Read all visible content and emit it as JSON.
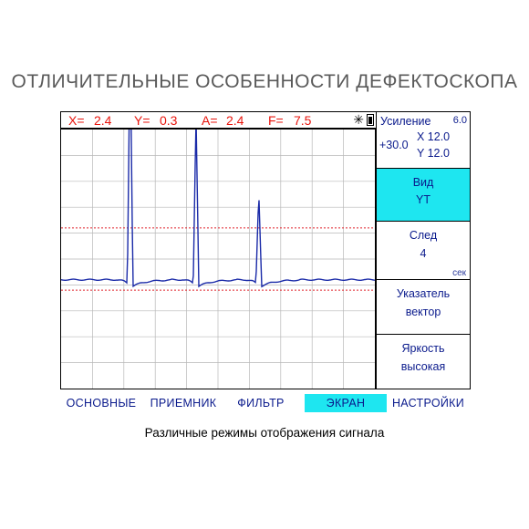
{
  "page_title": "ОТЛИЧИТЕЛЬНЫЕ ОСОБЕННОСТИ ДЕФЕКТОСКОПА",
  "caption": "Различные режимы отображения сигнала",
  "status": {
    "x_label": "X=",
    "x_value": "2.4",
    "y_label": "Y=",
    "y_value": "0.3",
    "a_label": "A=",
    "a_value": "2.4",
    "f_label": "F=",
    "f_value": "7.5",
    "brightness_icon": "sun-icon",
    "battery_icon": "battery-icon"
  },
  "side_panel": {
    "gain": {
      "label": "Усиление",
      "value": "6.0",
      "offset": "+30.0",
      "x": "X 12.0",
      "y": "Y 12.0"
    },
    "view": {
      "label": "Вид",
      "value": "YT"
    },
    "trace": {
      "label": "След",
      "value": "4",
      "unit": "сек"
    },
    "pointer": {
      "label": "Указатель",
      "value": "вектор"
    },
    "brightness": {
      "label": "Яркость",
      "value": "высокая"
    }
  },
  "menu": {
    "items": [
      "ОСНОВНЫЕ",
      "ПРИЕМНИК",
      "ФИЛЬТР",
      "ЭКРАН",
      "НАСТРОЙКИ"
    ],
    "active_index": 3
  },
  "colors": {
    "accent_cyan": "#1ee6f0",
    "label_blue": "#0a1a8c",
    "status_red": "#e8140c",
    "signal_blue": "#1a2aa8",
    "threshold_red": "#e0242c",
    "grid": "#b8b8b8"
  },
  "signal": {
    "baseline_fraction": 0.58,
    "upper_threshold_fraction": 0.38,
    "lower_threshold_fraction": 0.62,
    "peaks": [
      {
        "position": 0.22,
        "height": 0.95
      },
      {
        "position": 0.43,
        "height": 0.64
      },
      {
        "position": 0.63,
        "height": 0.34
      }
    ]
  }
}
